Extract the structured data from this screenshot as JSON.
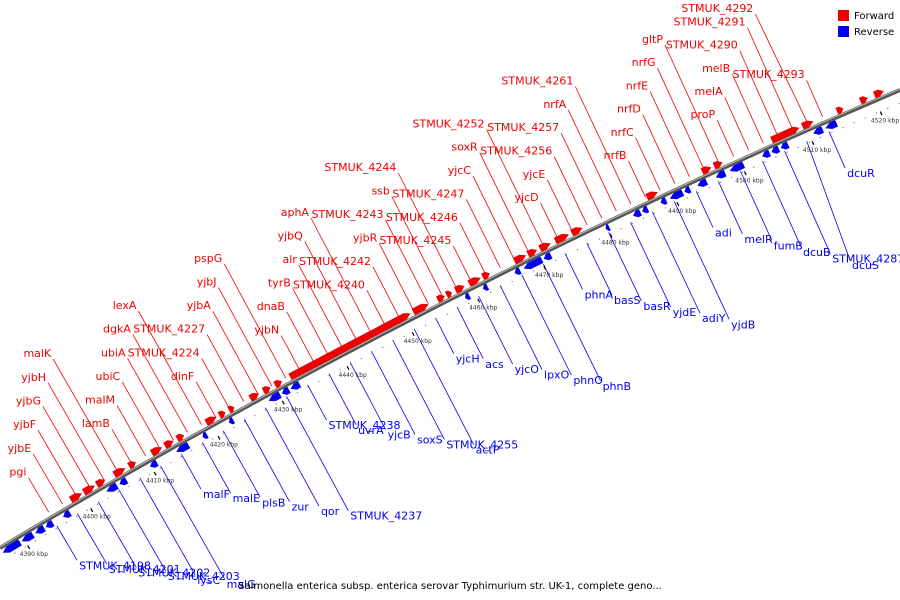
{
  "caption": "Salmonella enterica subsp. enterica serovar Typhimurium str. UK-1, complete geno...",
  "legend": [
    {
      "label": "Forward",
      "color": "#ee0000"
    },
    {
      "label": "Reverse",
      "color": "#0000ee"
    }
  ],
  "colors": {
    "forward": "#ee0000",
    "reverse": "#0000ee",
    "backbone": "#888888"
  },
  "ticks": [
    "4390 kbp",
    "4400 kbp",
    "4410 kbp",
    "4420 kbp",
    "4430 kbp",
    "4440 kbp",
    "4450 kbp",
    "4460 kbp",
    "4470 kbp",
    "4480 kbp",
    "4490 kbp",
    "4500 kbp",
    "4510 kbp",
    "4520 kbp"
  ],
  "forward_labels": [
    "pgi",
    "yjbE",
    "yjbF",
    "yjbG",
    "yjbH",
    "malK",
    "lamB",
    "malM",
    "ubiC",
    "ubiA",
    "dgkA",
    "lexA",
    "dinF",
    "STMUK_4224",
    "STMUK_4227",
    "yjbA",
    "yjbJ",
    "pspG",
    "yjbN",
    "dnaB",
    "tyrB",
    "alr",
    "yjbQ",
    "aphA",
    "STMUK_4240",
    "STMUK_4242",
    "yjbR",
    "STMUK_4243",
    "ssb",
    "STMUK_4244",
    "STMUK_4245",
    "STMUK_4246",
    "STMUK_4247",
    "yjcC",
    "soxR",
    "STMUK_4252",
    "yjcD",
    "yjcE",
    "STMUK_4256",
    "STMUK_4257",
    "nrfA",
    "STMUK_4261",
    "nrfB",
    "nrfC",
    "nrfD",
    "nrfE",
    "nrfG",
    "gltP",
    "proP",
    "melA",
    "melB",
    "STMUK_4290",
    "STMUK_4291",
    "STMUK_4292",
    "STMUK_4293"
  ],
  "reverse_labels": [
    "STMUK_4198",
    "STMUK_4201",
    "STMUK_4202",
    "STMUK_4203",
    "lysC",
    "malG",
    "malF",
    "malE",
    "plsB",
    "zur",
    "qor",
    "STMUK_4237",
    "STMUK_4238",
    "uvrA",
    "yjcB",
    "soxS",
    "STMUK_4255",
    "actP",
    "yjcH",
    "acs",
    "yjcO",
    "lpxO",
    "phnO",
    "phnB",
    "phnA",
    "basS",
    "basR",
    "yjdE",
    "adiY",
    "yjdB",
    "adi",
    "melR",
    "fumB",
    "dcuB",
    "STMUK_4287",
    "dcuS",
    "dcuR"
  ]
}
